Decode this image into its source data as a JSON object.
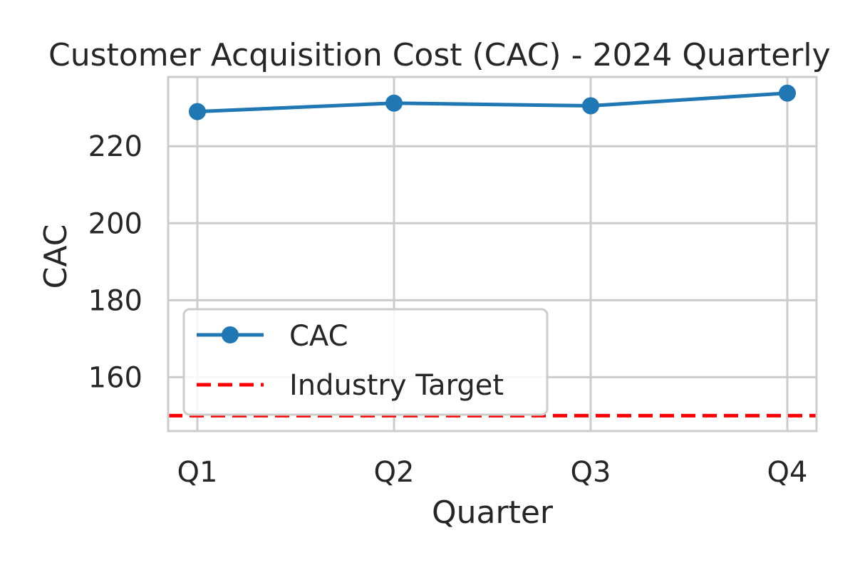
{
  "chart_data": {
    "type": "line",
    "title": "Customer Acquisition Cost (CAC) - 2024 Quarterly",
    "xlabel": "Quarter",
    "ylabel": "CAC",
    "categories": [
      "Q1",
      "Q2",
      "Q3",
      "Q4"
    ],
    "series": [
      {
        "name": "CAC",
        "values": [
          229,
          231.2,
          230.5,
          233.8
        ],
        "color": "#1f77b4",
        "marker": "circle"
      }
    ],
    "reference_lines": [
      {
        "name": "Industry Target",
        "value": 150,
        "color": "#ff0000",
        "style": "dashed"
      }
    ],
    "ylim": [
      146,
      238
    ],
    "yticks": [
      160,
      180,
      200,
      220
    ],
    "grid": true,
    "legend": "lower-left"
  }
}
